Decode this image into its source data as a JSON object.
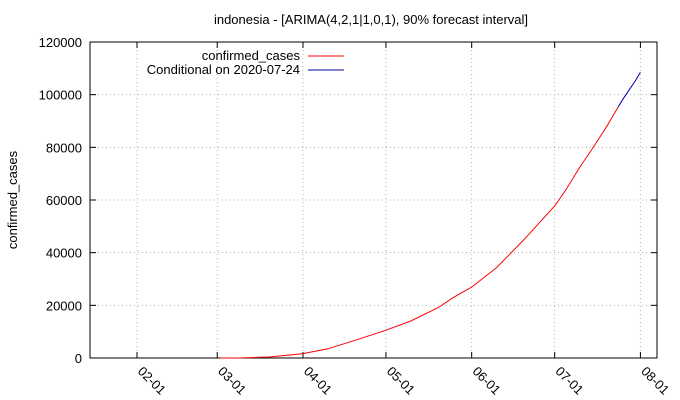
{
  "chart_data": {
    "type": "line",
    "title": "indonesia -  [ARIMA(4,2,1|1,0,1), 90% forecast interval]",
    "xlabel": "",
    "ylabel": "confirmed_cases",
    "xlim": [
      "2020-01-15",
      "2020-08-07"
    ],
    "ylim": [
      0,
      120000
    ],
    "x_ticks": [
      "02-01",
      "03-01",
      "04-01",
      "05-01",
      "06-01",
      "07-01",
      "08-01"
    ],
    "x_tick_dates": [
      "2020-02-01",
      "2020-03-01",
      "2020-04-01",
      "2020-05-01",
      "2020-06-01",
      "2020-07-01",
      "2020-08-01"
    ],
    "y_ticks": [
      "0",
      "20000",
      "40000",
      "60000",
      "80000",
      "100000",
      "120000"
    ],
    "y_tick_values": [
      0,
      20000,
      40000,
      60000,
      80000,
      100000,
      120000
    ],
    "grid": true,
    "legend_placement": "top-left",
    "series": [
      {
        "name": "confirmed_cases",
        "color": "#ff0000",
        "x": [
          "2020-03-02",
          "2020-03-10",
          "2020-03-20",
          "2020-04-01",
          "2020-04-10",
          "2020-04-20",
          "2020-05-01",
          "2020-05-10",
          "2020-05-20",
          "2020-05-25",
          "2020-06-01",
          "2020-06-10",
          "2020-06-20",
          "2020-07-01",
          "2020-07-05",
          "2020-07-10",
          "2020-07-15",
          "2020-07-20",
          "2020-07-24"
        ],
        "y": [
          2,
          27,
          369,
          1677,
          3512,
          6760,
          10551,
          14032,
          19189,
          22750,
          26940,
          34316,
          45029,
          57770,
          63749,
          72347,
          80094,
          88214,
          95418
        ]
      },
      {
        "name": "Conditional on 2020-07-24",
        "color": "#0000aa",
        "x": [
          "2020-07-24",
          "2020-07-26",
          "2020-07-28",
          "2020-07-30",
          "2020-08-01"
        ],
        "y": [
          95418,
          98800,
          101900,
          105000,
          108500
        ]
      }
    ]
  }
}
